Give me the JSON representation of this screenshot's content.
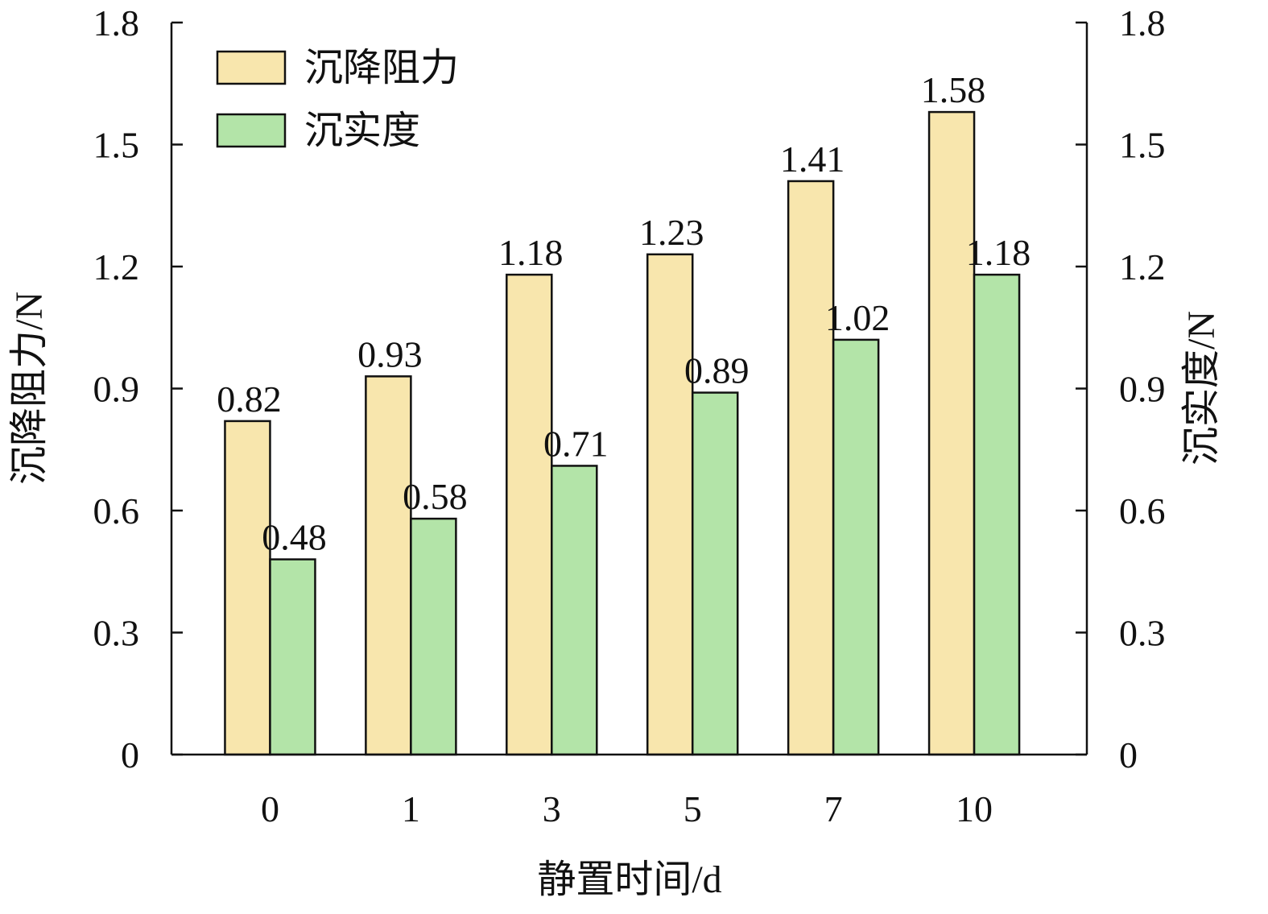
{
  "chart_data": {
    "type": "bar",
    "categories": [
      "0",
      "1",
      "3",
      "5",
      "7",
      "10"
    ],
    "series": [
      {
        "name": "沉降阻力",
        "values": [
          0.82,
          0.93,
          1.18,
          1.23,
          1.41,
          1.58
        ],
        "color": "#f8e6ad",
        "labels": [
          "0.82",
          "0.93",
          "1.18",
          "1.23",
          "1.41",
          "1.58"
        ]
      },
      {
        "name": "沉实度",
        "values": [
          0.48,
          0.58,
          0.71,
          0.89,
          1.02,
          1.18
        ],
        "color": "#b3e4a8",
        "labels": [
          "0.48",
          "0.58",
          "0.71",
          "0.89",
          "1.02",
          "1.18"
        ]
      }
    ],
    "xlabel": "静置时间/d",
    "ylabel": "沉降阻力/N",
    "ylabel_right": "沉实度/N",
    "ylim": [
      0,
      1.8
    ],
    "yticks": [
      "0",
      "0.3",
      "0.6",
      "0.9",
      "1.2",
      "1.5",
      "1.8"
    ],
    "ytick_values": [
      0,
      0.3,
      0.6,
      0.9,
      1.2,
      1.5,
      1.8
    ],
    "legend_position": "top-left",
    "grid": false
  }
}
